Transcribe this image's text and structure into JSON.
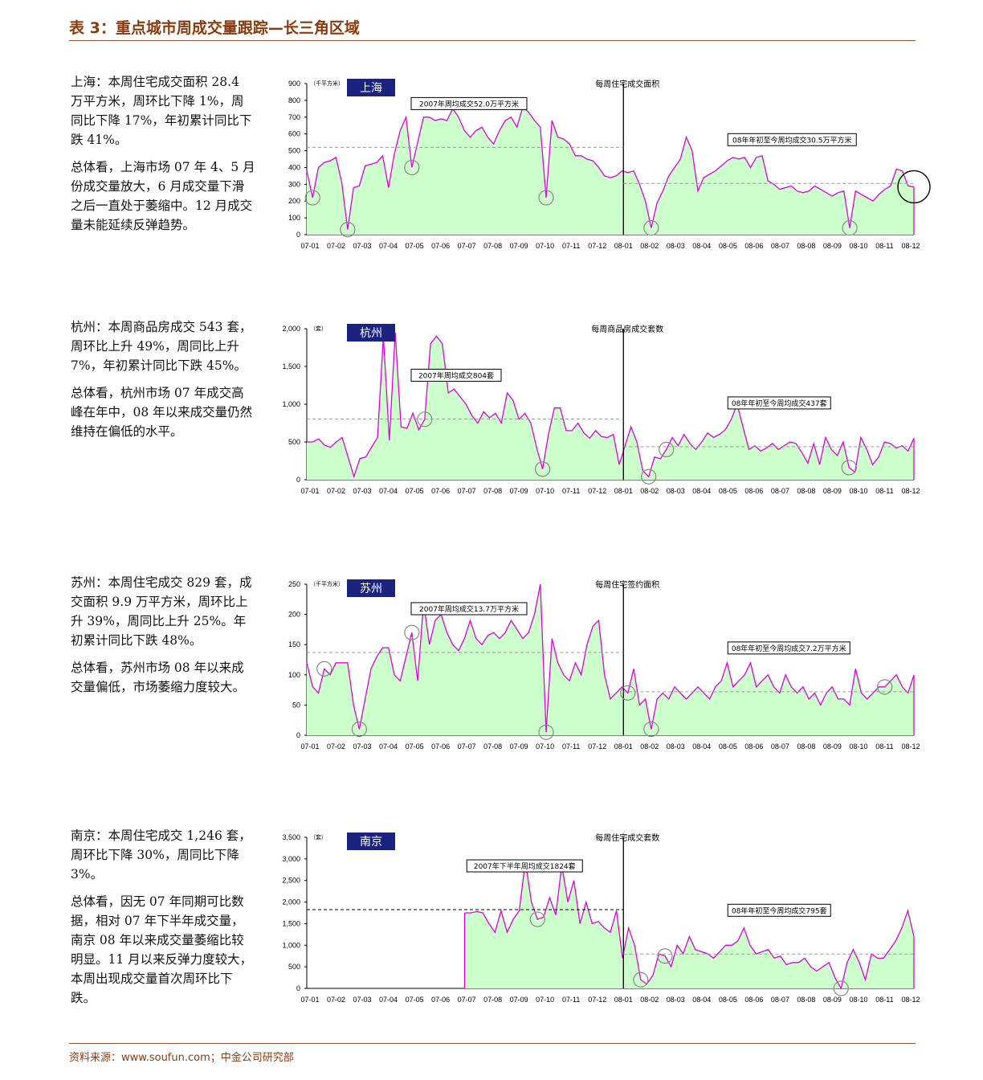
{
  "header": {
    "title": "表 3：重点城市周成交量跟踪—长三角区域"
  },
  "footer": {
    "source": "资料来源：www.soufun.com；中金公司研究部"
  },
  "sections": [
    {
      "city": "上海",
      "text1": "上海：本周住宅成交面积 28.4 万平方米，周环比下降 1%，周同比下降 17%，年初累计同比下跌 41%。",
      "text2": "总体看，上海市场 07 年 4、5 月份成交量放大，6 月成交量下滑之后一直处于萎缩中。12 月成交量未能延续反弹趋势。"
    },
    {
      "city": "杭州",
      "text1": "杭州：本周商品房成交 543 套，周环比上升 49%，周同比上升 7%，年初累计同比下跌 45%。",
      "text2": "总体看，杭州市场 07 年成交高峰在年中，08 年以来成交量仍然维持在偏低的水平。"
    },
    {
      "city": "苏州",
      "text1": "苏州：本周住宅成交 829 套，成交面积 9.9 万平方米，周环比上升 39%，周同比上升 25%。年初累计同比下跌 48%。",
      "text2": "总体看，苏州市场 08 年以来成交量偏低，市场萎缩力度较大。"
    },
    {
      "city": "南京",
      "text1": "南京：本周住宅成交 1,246 套，周环比下降 30%，周同比下降 3%。",
      "text2": "总体看，因无 07 年同期可比数据，相对 07 年下半年成交量，南京 08 年以来成交量萎缩比较明显。11 月以来反弹力度较大，本周出现成交量首次周环比下跌。"
    }
  ],
  "chart_data": [
    {
      "type": "area",
      "city_tag": "上海",
      "title": "每周住宅成交面积",
      "unit": "（千平方米）",
      "ylim": [
        0,
        900
      ],
      "yticks": [
        "0",
        "100",
        "200",
        "300",
        "400",
        "500",
        "600",
        "700",
        "800",
        "900"
      ],
      "xticks": [
        "07-01",
        "07-02",
        "07-03",
        "07-04",
        "07-05",
        "07-06",
        "07-07",
        "07-08",
        "07-09",
        "07-10",
        "07-11",
        "07-12",
        "08-01",
        "08-02",
        "08-03",
        "08-04",
        "08-05",
        "08-06",
        "08-07",
        "08-08",
        "08-09",
        "08-10",
        "08-11",
        "08-12"
      ],
      "avg1": {
        "value": 520,
        "label": "2007年周均成交52.0万平方米"
      },
      "avg2": {
        "value": 305,
        "label": "08年年初至今周均成交30.5万平方米"
      },
      "values": [
        380,
        220,
        400,
        430,
        440,
        460,
        310,
        30,
        280,
        290,
        410,
        420,
        430,
        470,
        280,
        480,
        620,
        700,
        400,
        550,
        700,
        700,
        680,
        690,
        680,
        750,
        700,
        620,
        580,
        620,
        640,
        580,
        540,
        620,
        680,
        700,
        640,
        760,
        730,
        680,
        640,
        220,
        680,
        580,
        570,
        540,
        470,
        470,
        450,
        440,
        400,
        350,
        340,
        350,
        380,
        370,
        380,
        300,
        200,
        40,
        190,
        260,
        350,
        400,
        450,
        580,
        500,
        260,
        340,
        360,
        380,
        410,
        440,
        460,
        450,
        460,
        400,
        460,
        470,
        320,
        300,
        270,
        280,
        290,
        260,
        250,
        260,
        290,
        270,
        250,
        230,
        250,
        260,
        40,
        260,
        240,
        220,
        200,
        240,
        270,
        290,
        390,
        380,
        290,
        285
      ],
      "circles": [
        1,
        7,
        18,
        41,
        59,
        93,
        104
      ]
    },
    {
      "type": "area",
      "city_tag": "杭州",
      "title": "每周商品房成交套数",
      "unit": "（套）",
      "ylim": [
        0,
        2000
      ],
      "yticks": [
        "0",
        "500",
        "1,000",
        "1,500",
        "2,000"
      ],
      "xticks": [
        "07-01",
        "07-02",
        "07-03",
        "07-04",
        "07-05",
        "07-06",
        "07-07",
        "07-08",
        "07-09",
        "07-10",
        "07-11",
        "07-12",
        "08-01",
        "08-02",
        "08-03",
        "08-04",
        "08-05",
        "08-06",
        "08-07",
        "08-08",
        "08-09",
        "08-10",
        "08-11",
        "08-12"
      ],
      "avg1": {
        "value": 804,
        "label": "2007年周均成交804套"
      },
      "avg2": {
        "value": 437,
        "label": "08年年初至今周均成交437套"
      },
      "values": [
        500,
        500,
        540,
        460,
        430,
        500,
        560,
        300,
        40,
        280,
        300,
        430,
        560,
        1900,
        520,
        1950,
        700,
        680,
        880,
        660,
        800,
        1800,
        1900,
        1800,
        1150,
        1200,
        1100,
        1000,
        850,
        750,
        900,
        820,
        880,
        750,
        1150,
        1050,
        800,
        880,
        750,
        420,
        140,
        600,
        950,
        950,
        650,
        650,
        750,
        620,
        550,
        650,
        570,
        560,
        600,
        200,
        450,
        700,
        500,
        120,
        40,
        300,
        280,
        400,
        560,
        450,
        600,
        480,
        400,
        500,
        620,
        560,
        600,
        660,
        800,
        1000,
        700,
        400,
        450,
        380,
        420,
        480,
        400,
        450,
        500,
        480,
        360,
        220,
        480,
        200,
        560,
        400,
        320,
        500,
        160,
        100,
        560,
        400,
        200,
        300,
        500,
        480,
        420,
        450,
        380,
        550
      ],
      "circles": [
        20,
        40,
        58,
        61,
        92,
        106
      ]
    },
    {
      "type": "area",
      "city_tag": "苏州",
      "title": "每周住宅签约面积",
      "unit": "（千平方米）",
      "ylim": [
        0,
        250
      ],
      "yticks": [
        "0",
        "50",
        "100",
        "150",
        "200",
        "250"
      ],
      "xticks": [
        "07-01",
        "07-02",
        "07-03",
        "07-04",
        "07-05",
        "07-06",
        "07-07",
        "07-08",
        "07-09",
        "07-10",
        "07-11",
        "07-12",
        "08-01",
        "08-02",
        "08-03",
        "08-04",
        "08-05",
        "08-06",
        "08-07",
        "08-08",
        "08-09",
        "08-10",
        "08-11",
        "08-12"
      ],
      "avg1": {
        "value": 137,
        "label": "2007年周均成交13.7万平方米"
      },
      "avg2": {
        "value": 72,
        "label": "08年年初至今周均成交7.2万平方米"
      },
      "values": [
        120,
        80,
        70,
        110,
        100,
        120,
        120,
        120,
        50,
        10,
        60,
        110,
        130,
        145,
        145,
        100,
        90,
        130,
        170,
        90,
        220,
        150,
        190,
        200,
        170,
        150,
        140,
        160,
        190,
        160,
        150,
        165,
        170,
        160,
        170,
        190,
        175,
        160,
        170,
        200,
        250,
        5,
        160,
        120,
        100,
        90,
        120,
        100,
        150,
        180,
        190,
        100,
        60,
        70,
        80,
        70,
        110,
        50,
        60,
        10,
        60,
        70,
        60,
        80,
        70,
        60,
        70,
        80,
        70,
        60,
        80,
        90,
        120,
        80,
        90,
        100,
        120,
        80,
        90,
        100,
        80,
        70,
        100,
        80,
        70,
        80,
        60,
        70,
        50,
        70,
        80,
        60,
        60,
        50,
        110,
        70,
        60,
        70,
        80,
        80,
        90,
        100,
        80,
        70,
        100
      ],
      "circles": [
        3,
        9,
        18,
        41,
        55,
        59,
        99,
        106
      ]
    },
    {
      "type": "area",
      "city_tag": "南京",
      "title": "每周住宅成交套数",
      "unit": "（套）",
      "ylim": [
        0,
        3500
      ],
      "yticks": [
        "0",
        "500",
        "1,000",
        "1,500",
        "2,000",
        "2,500",
        "3,000",
        "3,500"
      ],
      "xticks": [
        "07-01",
        "07-02",
        "07-03",
        "07-04",
        "07-05",
        "07-06",
        "07-07",
        "07-08",
        "07-09",
        "07-10",
        "07-11",
        "07-12",
        "08-01",
        "08-02",
        "08-03",
        "08-04",
        "08-05",
        "08-06",
        "08-07",
        "08-08",
        "08-09",
        "08-10",
        "08-11",
        "08-12"
      ],
      "avg1": {
        "value": 1824,
        "label": "2007年下半年周均成交1824套"
      },
      "avg2": {
        "value": 795,
        "label": "08年年初至今周均成交795套"
      },
      "start_index": 26,
      "values": [
        null,
        null,
        null,
        null,
        null,
        null,
        null,
        null,
        null,
        null,
        null,
        null,
        null,
        null,
        null,
        null,
        null,
        null,
        null,
        null,
        null,
        null,
        null,
        null,
        null,
        null,
        1750,
        1750,
        1780,
        1750,
        1500,
        1300,
        1800,
        1300,
        1600,
        1800,
        2950,
        2000,
        1600,
        1650,
        2100,
        1700,
        2850,
        2000,
        2500,
        1500,
        2000,
        1500,
        1550,
        1400,
        1300,
        1800,
        700,
        1400,
        1000,
        200,
        100,
        300,
        800,
        750,
        500,
        1000,
        800,
        1200,
        900,
        850,
        800,
        700,
        850,
        1000,
        1000,
        1100,
        1400,
        1000,
        800,
        850,
        900,
        700,
        750,
        550,
        600,
        600,
        700,
        500,
        400,
        500,
        600,
        250,
        0,
        600,
        900,
        600,
        200,
        800,
        700,
        700,
        900,
        1100,
        1400,
        1800,
        1200
      ],
      "circles": [
        38,
        55,
        59,
        88,
        101
      ]
    }
  ]
}
